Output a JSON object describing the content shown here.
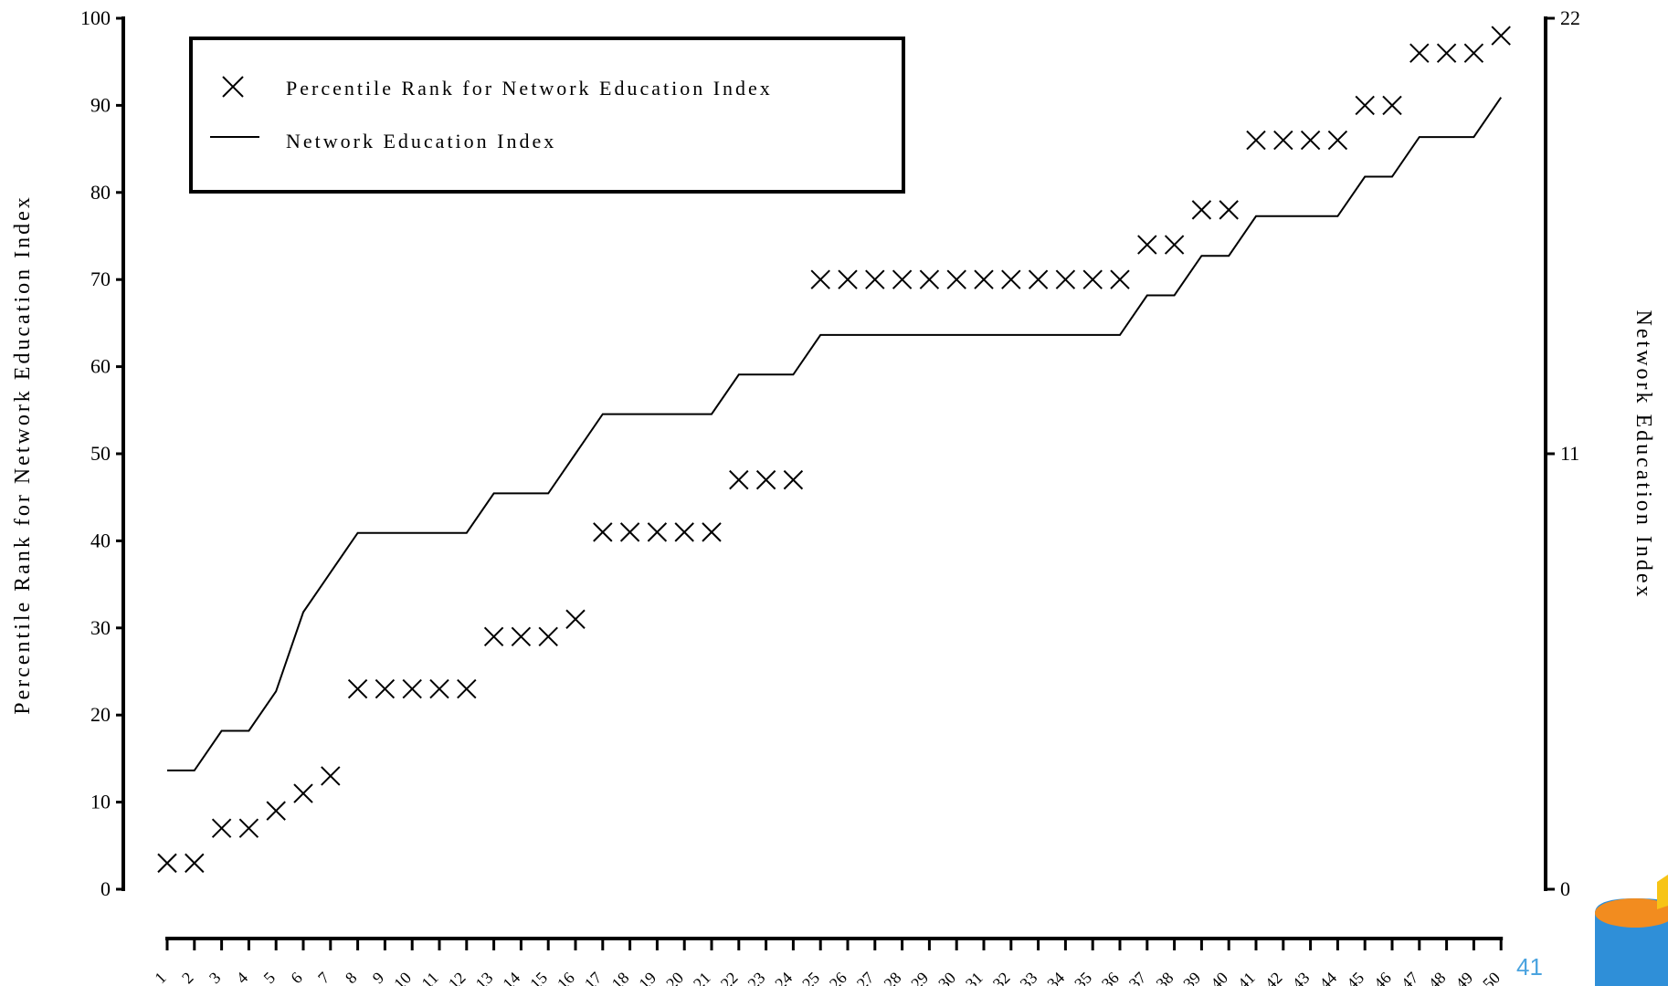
{
  "chart_data": {
    "type": "scatter",
    "title": "",
    "xlabel": "",
    "ylabel": "Percentile Rank for Network Education Index",
    "y2label": "Network Education Index",
    "ylim": [
      0,
      100
    ],
    "y2lim": [
      0,
      22
    ],
    "yticks": [
      0,
      10,
      20,
      30,
      40,
      50,
      60,
      70,
      80,
      90,
      100
    ],
    "y2ticks": [
      0,
      11,
      22
    ],
    "grid": false,
    "legend_position": "top-left",
    "categories": [
      "1",
      "2",
      "3",
      "4",
      "5",
      "6",
      "7",
      "8",
      "9",
      "10",
      "11",
      "12",
      "13",
      "14",
      "15",
      "16",
      "17",
      "18",
      "19",
      "20",
      "21",
      "22",
      "23",
      "24",
      "25",
      "26",
      "27",
      "28",
      "29",
      "30",
      "31",
      "32",
      "33",
      "34",
      "35",
      "36",
      "37",
      "38",
      "39",
      "40",
      "41",
      "42",
      "43",
      "44",
      "45",
      "46",
      "47",
      "48",
      "49",
      "50"
    ],
    "series": [
      {
        "name": "Percentile Rank for Network Education Index",
        "marker": "x",
        "axis": "left",
        "values": [
          3,
          3,
          7,
          7,
          9,
          11,
          13,
          23,
          23,
          23,
          23,
          23,
          29,
          29,
          29,
          31,
          41,
          41,
          41,
          41,
          41,
          47,
          47,
          47,
          70,
          70,
          70,
          70,
          70,
          70,
          70,
          70,
          70,
          70,
          70,
          70,
          74,
          74,
          78,
          78,
          86,
          86,
          86,
          86,
          90,
          90,
          96,
          96,
          96,
          98
        ]
      },
      {
        "name": "Network Education Index",
        "marker": "line",
        "axis": "right",
        "values": [
          3.0,
          3.0,
          4.0,
          4.0,
          5.0,
          7.0,
          8.0,
          9.0,
          9.0,
          9.0,
          9.0,
          9.0,
          10.0,
          10.0,
          10.0,
          11.0,
          12.0,
          12.0,
          12.0,
          12.0,
          12.0,
          13.0,
          13.0,
          13.0,
          14.0,
          14.0,
          14.0,
          14.0,
          14.0,
          14.0,
          14.0,
          14.0,
          14.0,
          14.0,
          14.0,
          14.0,
          15.0,
          15.0,
          16.0,
          16.0,
          17.0,
          17.0,
          17.0,
          17.0,
          18.0,
          18.0,
          19.0,
          19.0,
          19.0,
          20.0
        ]
      }
    ],
    "colors": {
      "ink": "#000000",
      "page_number": "#4aa3df",
      "logo_blue": "#2f8fd8",
      "logo_orange": "#f28c1f",
      "logo_yellow": "#f7c417"
    }
  },
  "slide": {
    "page_number": "41"
  },
  "icons": {
    "logo": "cylinder-logo-icon"
  }
}
